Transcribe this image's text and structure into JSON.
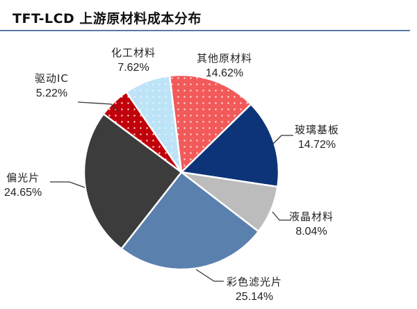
{
  "title": "TFT-LCD 上游原材料成本分布",
  "chart_data": {
    "type": "pie",
    "title": "TFT-LCD 上游原材料成本分布",
    "start_angle_deg": -7,
    "direction": "clockwise",
    "legend": "none (data labels with leader lines)",
    "slices": [
      {
        "label": "其他原材料",
        "value": 14.62,
        "display": "14.62%",
        "color": "#f25a5a",
        "pattern": "dots"
      },
      {
        "label": "玻璃基板",
        "value": 14.72,
        "display": "14.72%",
        "color": "#0d3478",
        "pattern": "none"
      },
      {
        "label": "液晶材料",
        "value": 8.04,
        "display": "8.04%",
        "color": "#bcbcbc",
        "pattern": "none"
      },
      {
        "label": "彩色滤光片",
        "value": 25.14,
        "display": "25.14%",
        "color": "#5a80ae",
        "pattern": "none"
      },
      {
        "label": "偏光片",
        "value": 24.65,
        "display": "24.65%",
        "color": "#3c3c3c",
        "pattern": "none"
      },
      {
        "label": "驱动IC",
        "value": 5.22,
        "display": "5.22%",
        "color": "#c0000a",
        "pattern": "dots"
      },
      {
        "label": "化工材料",
        "value": 7.62,
        "display": "7.62%",
        "color": "#bde3f7",
        "pattern": "dots"
      }
    ]
  },
  "labels": {
    "other": {
      "name": "其他原材料",
      "pct": "14.62%"
    },
    "glass": {
      "name": "玻璃基板",
      "pct": "14.72%"
    },
    "lc": {
      "name": "液晶材料",
      "pct": "8.04%"
    },
    "cf": {
      "name": "彩色滤光片",
      "pct": "25.14%"
    },
    "polarizer": {
      "name": "偏光片",
      "pct": "24.65%"
    },
    "driver": {
      "name": "驱动IC",
      "pct": "5.22%"
    },
    "chem": {
      "name": "化工材料",
      "pct": "7.62%"
    }
  }
}
